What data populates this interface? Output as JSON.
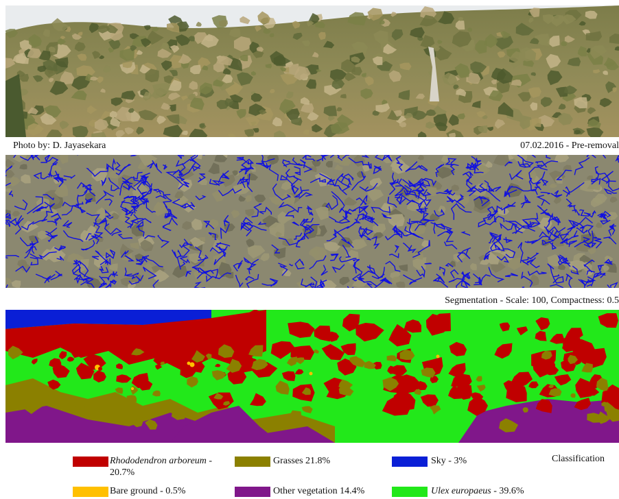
{
  "captions": {
    "photo_credit": "Photo by: D. Jayasekara",
    "photo_date": "07.02.2016 - Pre-removal",
    "segmentation": "Segmentation - Scale: 100, Compactness: 0.5",
    "classification": "Classification"
  },
  "legend": [
    {
      "name": "Rhododendron arboreum",
      "value": " - ",
      "value2": "20.7%",
      "color": "#c00000",
      "italic": true
    },
    {
      "name": "Grasses 21.8%",
      "value": "",
      "color": "#8b8000",
      "italic": false
    },
    {
      "name": "Sky - 3%",
      "value": "",
      "color": "#0a1fd6",
      "italic": false
    },
    {
      "name": "Bare ground - 0.5%",
      "value": "",
      "color": "#ffc000",
      "italic": false
    },
    {
      "name": "Other vegetation 14.4%",
      "value": "",
      "color": "#80178a",
      "italic": false
    },
    {
      "name": "Ulex europaeus",
      "value": " - 39.6%",
      "color": "#22e81a",
      "italic": true
    }
  ],
  "colors": {
    "photo_sky": "#e9ecee",
    "photo_hill_dark": "#5f6a3a",
    "photo_hill_mid": "#8c8a55",
    "photo_hill_light": "#b8a77a",
    "seg_base": "#8b8870",
    "seg_line": "#1010e0",
    "cls_red": "#c00000",
    "cls_green": "#22e81a",
    "cls_olive": "#8b8000",
    "cls_purple": "#80178a",
    "cls_blue": "#0a1fd6",
    "cls_yellow": "#ffc000"
  }
}
